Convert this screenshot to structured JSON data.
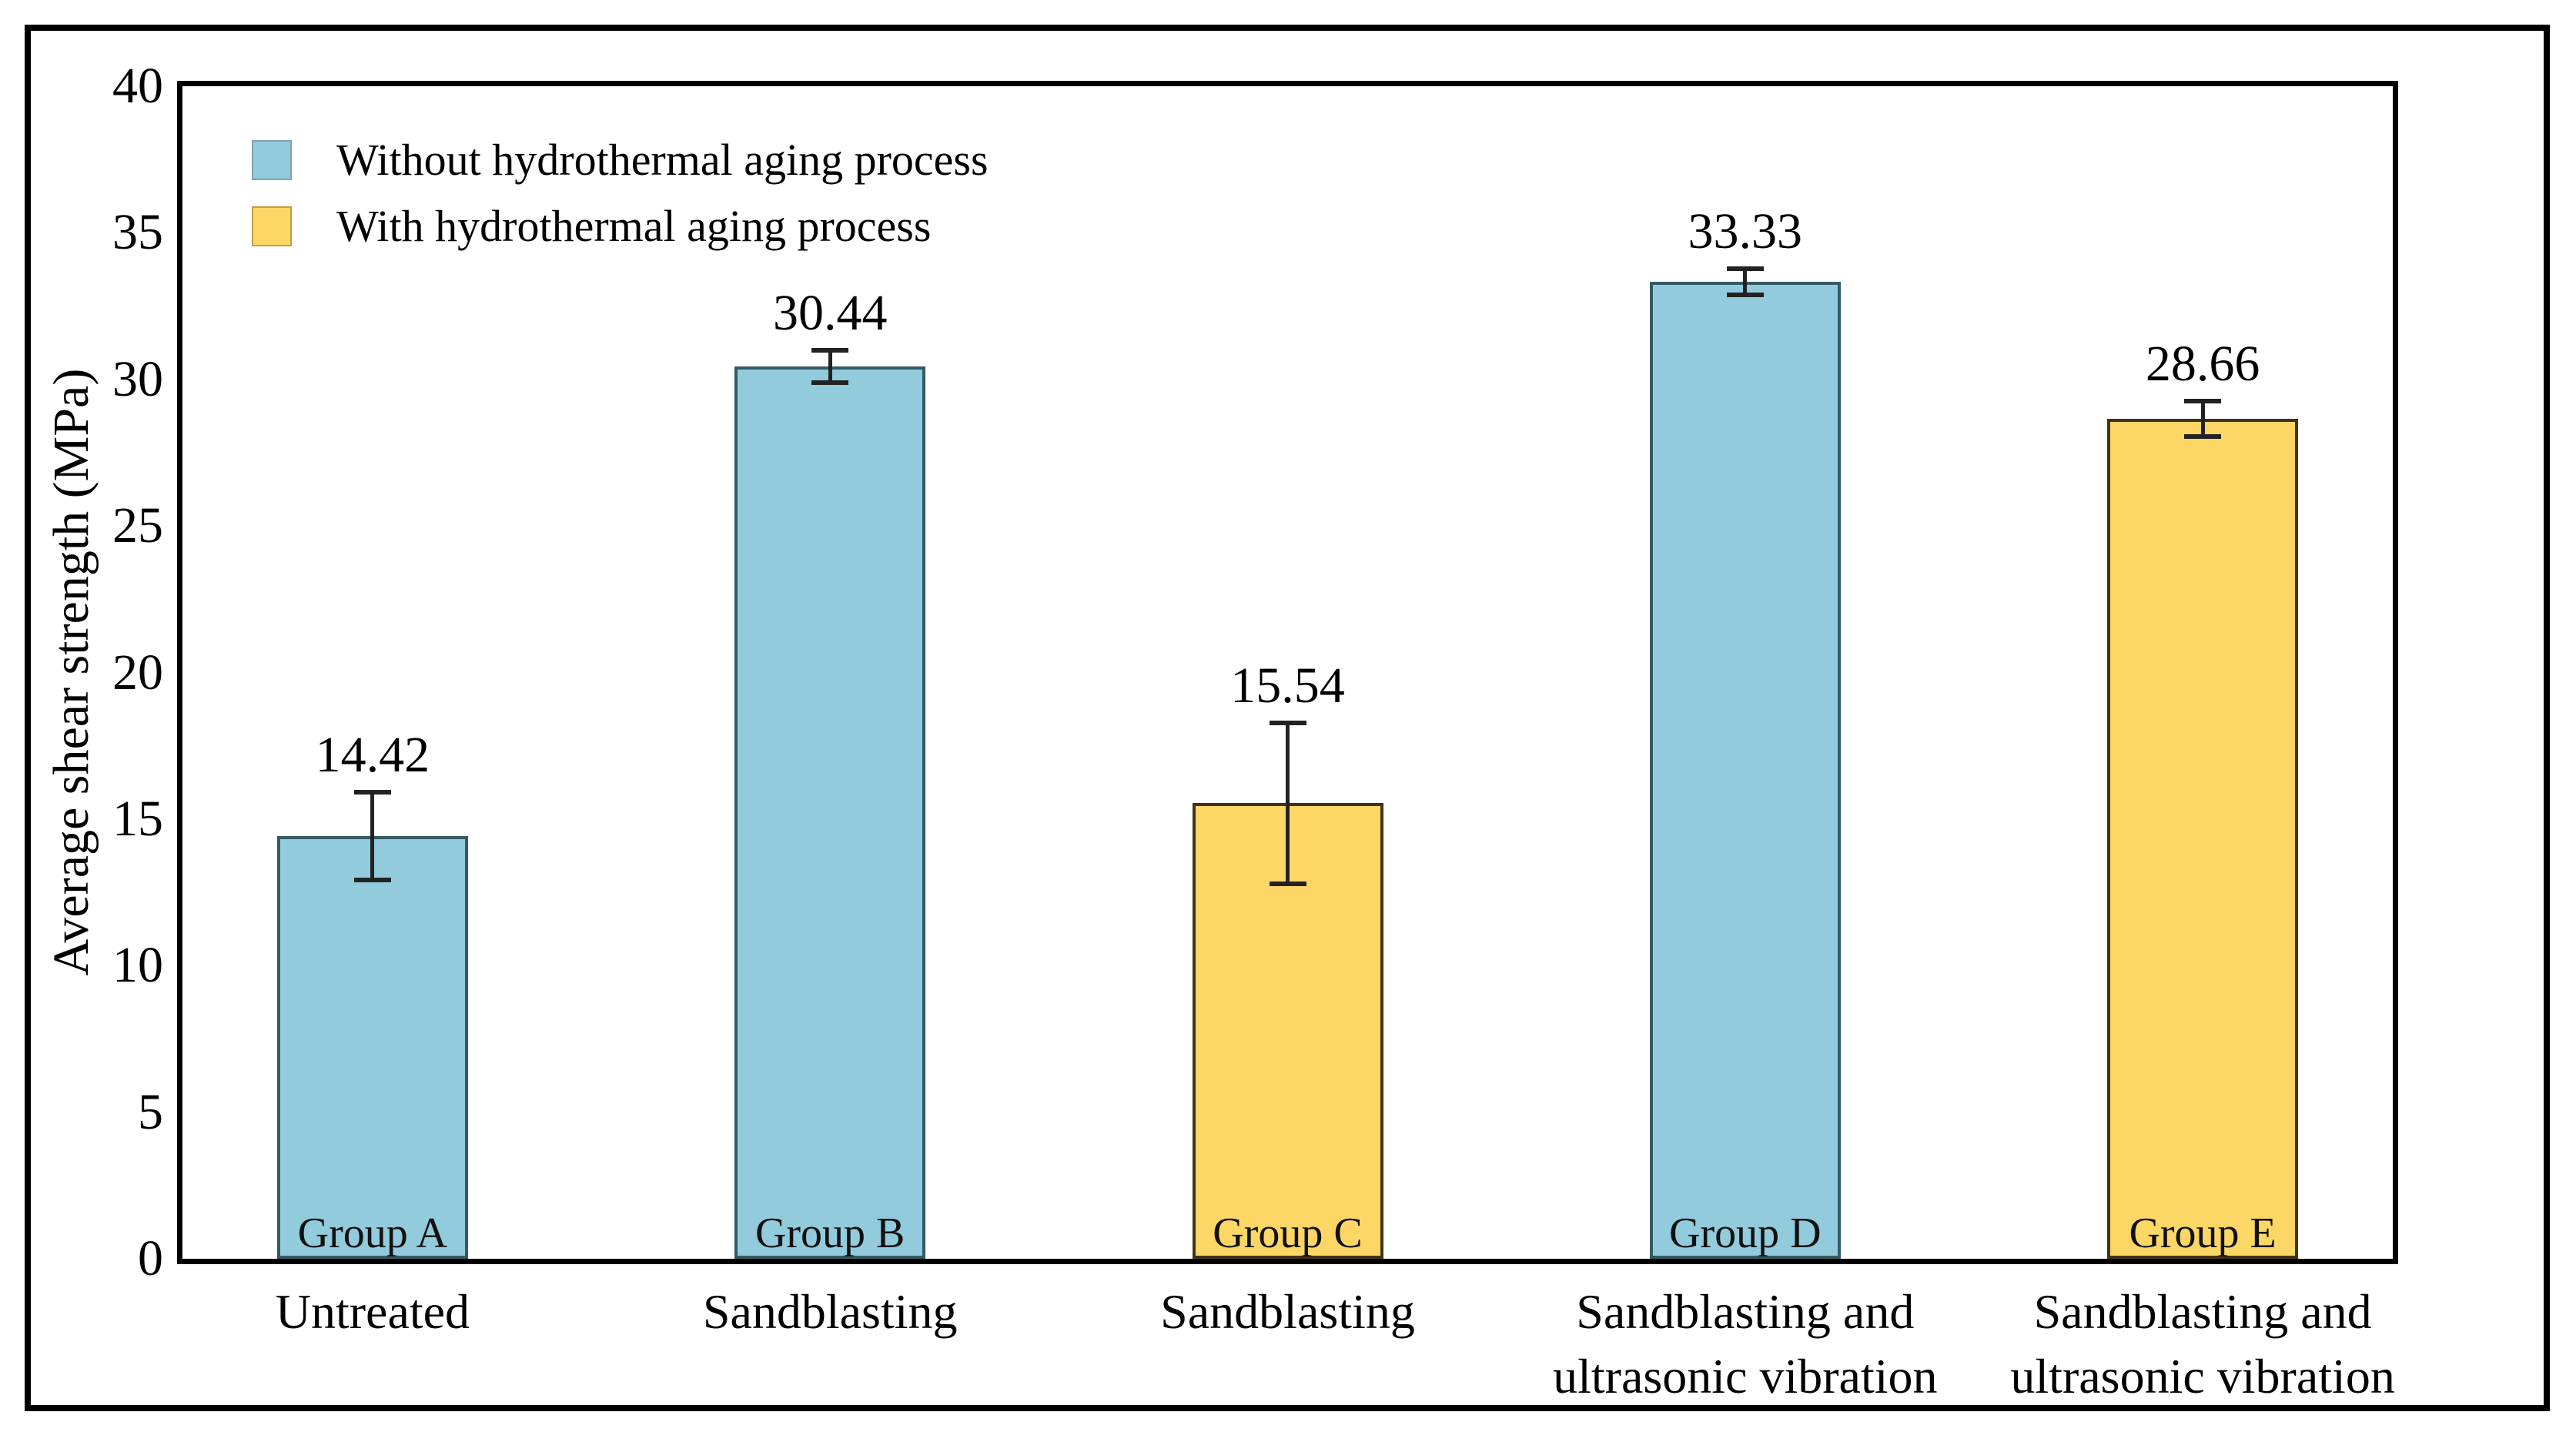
{
  "y_axis": {
    "label": "Average shear strength (MPa)",
    "min": 0,
    "max": 40,
    "tick_step": 5
  },
  "legend": {
    "items": [
      {
        "label": "Without hydrothermal aging process",
        "color": "#92CBDC",
        "swatch_border": "#7FA3B0"
      },
      {
        "label": "With hydrothermal aging process",
        "color": "#FDD766",
        "swatch_border": "#C79B3B"
      }
    ]
  },
  "colors": {
    "blue_fill": "#92CBDC",
    "blue_edge": "#335A66",
    "yellow_fill": "#FDD766",
    "yellow_edge": "#403316",
    "error_bar": "#222222",
    "axis": "#000000"
  },
  "chart_data": {
    "type": "bar",
    "title": "",
    "xlabel": "",
    "ylabel": "Average shear strength (MPa)",
    "ylim": [
      0,
      40
    ],
    "ytick_step": 5,
    "grid": false,
    "legend_position": "upper-left-inside",
    "categories": [
      "Untreated",
      "Sandblasting",
      "Sandblasting",
      "Sandblasting and ultrasonic vibration",
      "Sandblasting and ultrasonic vibration"
    ],
    "bars": [
      {
        "group": "Group A",
        "category_lines": [
          "Untreated"
        ],
        "value": 14.42,
        "value_label": "14.42",
        "error": 1.5,
        "series": "Without hydrothermal aging process",
        "fill": "#92CBDC",
        "edge": "#335A66"
      },
      {
        "group": "Group B",
        "category_lines": [
          "Sandblasting"
        ],
        "value": 30.44,
        "value_label": "30.44",
        "error": 0.55,
        "series": "Without hydrothermal aging process",
        "fill": "#92CBDC",
        "edge": "#335A66"
      },
      {
        "group": "Group C",
        "category_lines": [
          "Sandblasting"
        ],
        "value": 15.54,
        "value_label": "15.54",
        "error": 2.75,
        "series": "With hydrothermal aging process",
        "fill": "#FDD766",
        "edge": "#403316"
      },
      {
        "group": "Group D",
        "category_lines": [
          "Sandblasting and",
          "ultrasonic vibration"
        ],
        "value": 33.33,
        "value_label": "33.33",
        "error": 0.45,
        "series": "Without hydrothermal aging process",
        "fill": "#92CBDC",
        "edge": "#335A66"
      },
      {
        "group": "Group E",
        "category_lines": [
          "Sandblasting and",
          "ultrasonic vibration"
        ],
        "value": 28.66,
        "value_label": "28.66",
        "error": 0.6,
        "series": "With hydrothermal aging process",
        "fill": "#FDD766",
        "edge": "#403316"
      }
    ]
  }
}
